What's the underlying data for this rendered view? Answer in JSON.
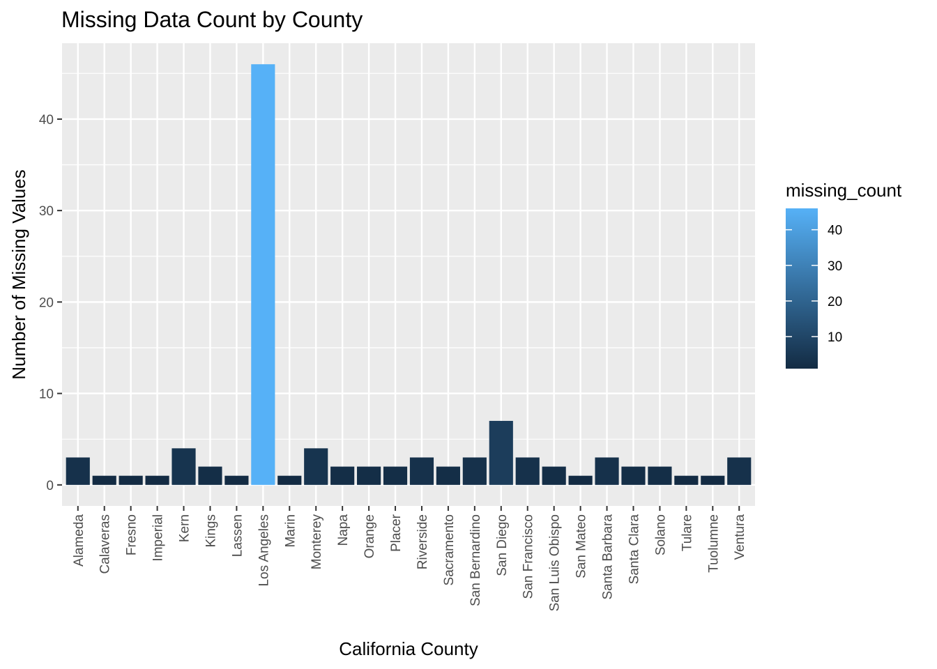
{
  "chart_data": {
    "type": "bar",
    "title": "Missing Data Count by County",
    "xlabel": "California County",
    "ylabel": "Number of Missing Values",
    "categories": [
      "Alameda",
      "Calaveras",
      "Fresno",
      "Imperial",
      "Kern",
      "Kings",
      "Lassen",
      "Los Angeles",
      "Marin",
      "Monterey",
      "Napa",
      "Orange",
      "Placer",
      "Riverside",
      "Sacramento",
      "San Bernardino",
      "San Diego",
      "San Francisco",
      "San Luis Obispo",
      "San Mateo",
      "Santa Barbara",
      "Santa Clara",
      "Solano",
      "Tulare",
      "Tuolumne",
      "Ventura"
    ],
    "values": [
      3,
      1,
      1,
      1,
      4,
      2,
      1,
      46,
      1,
      4,
      2,
      2,
      2,
      3,
      2,
      3,
      7,
      3,
      2,
      1,
      3,
      2,
      2,
      1,
      1,
      3
    ],
    "ylim": [
      -2.3,
      48.3
    ],
    "y_ticks": [
      0,
      10,
      20,
      30,
      40
    ],
    "grid": true,
    "fill_scale": {
      "title": "missing_count",
      "low_color": "#132B43",
      "high_color": "#56B1F7",
      "min": 1,
      "max": 46,
      "ticks": [
        10,
        20,
        30,
        40
      ]
    },
    "legend_position": "right"
  }
}
